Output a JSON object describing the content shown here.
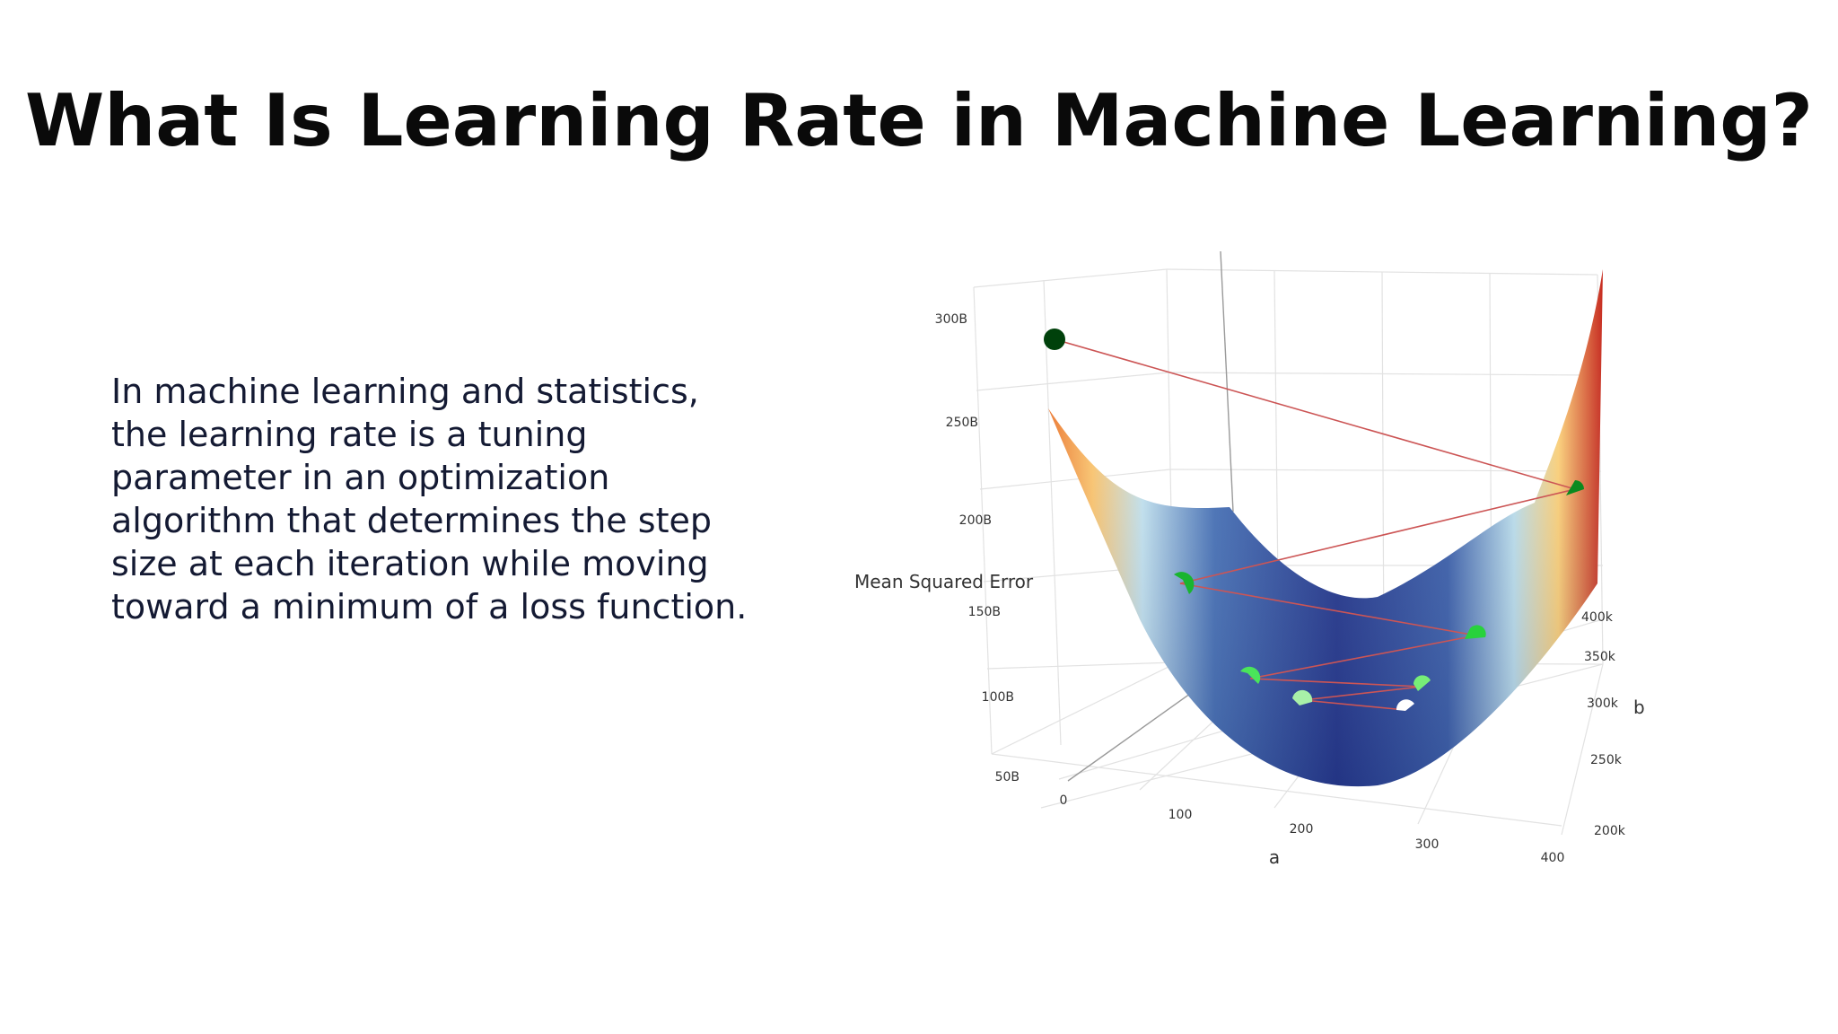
{
  "slide": {
    "title": "What Is Learning Rate in Machine Learning?",
    "body": "In machine learning and statistics, the learning rate is a tuning parameter in an optimization algorithm that determines the step size at each iteration while moving toward a minimum of a loss function."
  },
  "chart_data": {
    "type": "surface",
    "z_axis": {
      "label": "Mean Squared Error",
      "ticks": [
        "300B",
        "250B",
        "200B",
        "150B",
        "100B",
        "50B"
      ]
    },
    "x_axis": {
      "label": "a",
      "ticks": [
        "0",
        "100",
        "200",
        "300",
        "400"
      ]
    },
    "y_axis": {
      "label": "b",
      "ticks": [
        "400k",
        "350k",
        "300k",
        "250k",
        "200k"
      ]
    },
    "grid": true,
    "colorscale": [
      "#273a8f",
      "#3f63ad",
      "#a9d6ea",
      "#ffd37a",
      "#f08a3a",
      "#c62a1f"
    ],
    "descent_path": {
      "line_color": "#cc5555",
      "point_colors": [
        "#00410b",
        "#0a8a1f",
        "#19b52f",
        "#28d23c",
        "#4ae55a",
        "#77ee77",
        "#a8f0a8",
        "#ffffff"
      ]
    }
  }
}
